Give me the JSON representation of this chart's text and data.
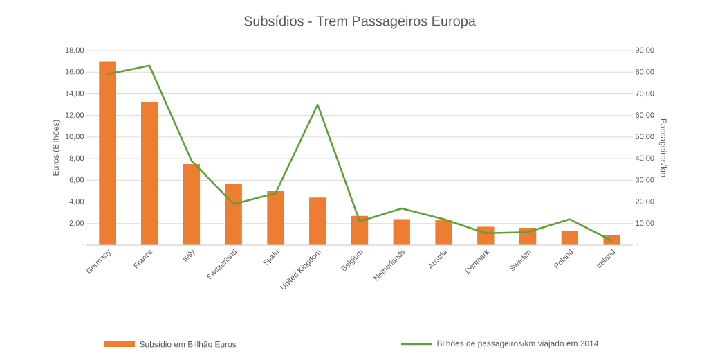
{
  "chart_data": {
    "type": "bar",
    "title": "Subsídios - Trem Passageiros Europa",
    "ylabel": "Euros (Bilhões)",
    "y2label": "Passageiros/km",
    "categories": [
      "Germany",
      "France",
      "Italy",
      "Switzerland",
      "Spain",
      "United Kingdom",
      "Belgium",
      "Netherlands",
      "Austria",
      "Denmark",
      "Sweden",
      "Poland",
      "Ireland"
    ],
    "series": [
      {
        "name": "Subsídio em Billhão Euros",
        "color": "#ed7d31",
        "values": [
          17.0,
          13.2,
          7.5,
          5.7,
          5.0,
          4.4,
          2.7,
          2.4,
          2.3,
          1.7,
          1.6,
          1.3,
          0.9
        ]
      },
      {
        "name": "Bilhões de passageiros/km viajado em 2014",
        "type": "line",
        "axis": "y2",
        "color": "#5fa03a",
        "values": [
          79,
          83,
          39,
          19,
          24,
          65,
          11,
          17,
          12,
          5.5,
          6,
          12,
          2
        ]
      }
    ],
    "ylim": [
      0,
      18
    ],
    "yticks": [
      {
        "value": 0,
        "label": "-"
      },
      {
        "value": 2,
        "label": "2,00"
      },
      {
        "value": 4,
        "label": "4,00"
      },
      {
        "value": 6,
        "label": "6,00"
      },
      {
        "value": 8,
        "label": "8,00"
      },
      {
        "value": 10,
        "label": "10,00"
      },
      {
        "value": 12,
        "label": "12,00"
      },
      {
        "value": 14,
        "label": "14,00"
      },
      {
        "value": 16,
        "label": "16,00"
      },
      {
        "value": 18,
        "label": "18,00"
      }
    ],
    "y2lim": [
      0,
      90
    ],
    "y2ticks": [
      {
        "value": 0,
        "label": "-"
      },
      {
        "value": 10,
        "label": "10,00"
      },
      {
        "value": 20,
        "label": "20,00"
      },
      {
        "value": 30,
        "label": "30,00"
      },
      {
        "value": 40,
        "label": "40,00"
      },
      {
        "value": 50,
        "label": "50,00"
      },
      {
        "value": 60,
        "label": "60,00"
      },
      {
        "value": 70,
        "label": "70,00"
      },
      {
        "value": 80,
        "label": "80,00"
      },
      {
        "value": 90,
        "label": "90,00"
      }
    ],
    "grid": "y",
    "legend": "bottom",
    "marker": "none",
    "line_style": "solid"
  }
}
